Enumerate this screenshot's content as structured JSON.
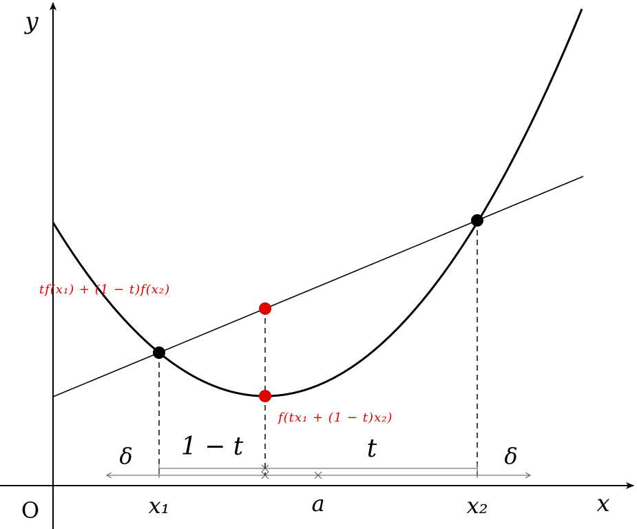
{
  "axes": {
    "x_label": "x",
    "y_label": "y",
    "origin": "O"
  },
  "ticks": [
    "x₁",
    "a",
    "x₂"
  ],
  "intervals": [
    "δ",
    "1 − t",
    "t",
    "δ"
  ],
  "annotations": [
    "tf(x₁) + (1 − t)f(x₂)",
    "f(tx₁ + (1 − t)x₂)"
  ]
}
